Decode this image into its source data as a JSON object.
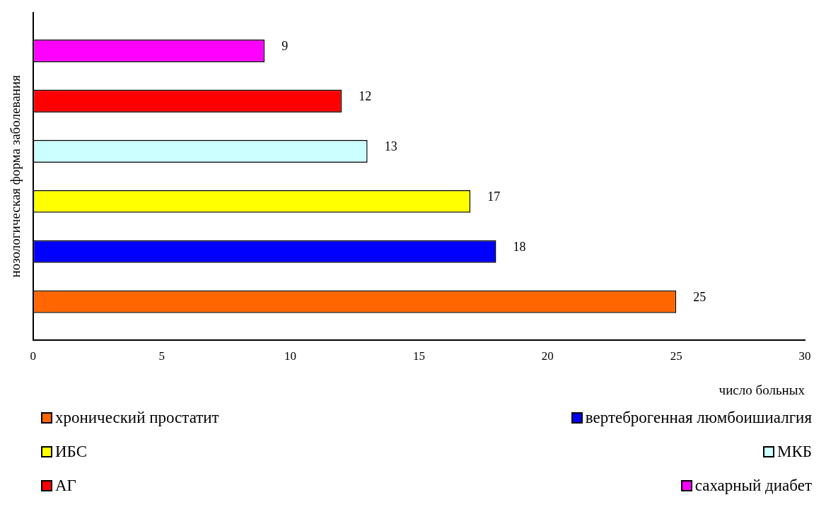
{
  "chart_data": {
    "type": "bar",
    "orientation": "horizontal",
    "xlabel": "число больных",
    "ylabel": "нозологическая форма заболевания",
    "categories": [
      null
    ],
    "series": [
      {
        "name": "хронический простатит",
        "color": "#ff6600",
        "values": [
          25
        ]
      },
      {
        "name": "вертеброгенная люмбоишиалгия",
        "color": "#0000ff",
        "values": [
          18
        ]
      },
      {
        "name": "ИБС",
        "color": "#ffff00",
        "values": [
          17
        ]
      },
      {
        "name": "МКБ",
        "color": "#ccffff",
        "values": [
          13
        ]
      },
      {
        "name": "АГ",
        "color": "#ff0000",
        "values": [
          12
        ]
      },
      {
        "name": "сахарный диабет",
        "color": "#ff00ff",
        "values": [
          9
        ]
      }
    ],
    "xlim": [
      0,
      30
    ],
    "xticks": [
      0,
      5,
      10,
      15,
      20,
      25,
      30
    ],
    "grid": false,
    "legend": "bottom",
    "data_labels": true
  }
}
